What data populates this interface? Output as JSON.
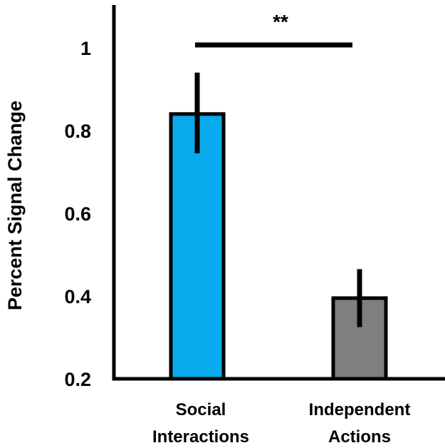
{
  "chart_data": {
    "type": "bar",
    "ylabel": "Percent Signal Change",
    "ylim": [
      0.2,
      1.1
    ],
    "yticks": [
      0.2,
      0.4,
      0.6,
      0.8,
      1
    ],
    "ytick_labels": [
      "0.2",
      "0.4",
      "0.6",
      "0.8",
      "1"
    ],
    "categories": [
      [
        "Social",
        "Interactions"
      ],
      [
        "Independent",
        "Actions"
      ]
    ],
    "values": [
      0.84,
      0.395
    ],
    "error_bars": [
      {
        "low": 0.745,
        "high": 0.94
      },
      {
        "low": 0.325,
        "high": 0.465
      }
    ],
    "bar_colors": [
      "#0aaaee",
      "#7f7f7f"
    ],
    "significance": {
      "label": "**",
      "between": [
        0,
        1
      ],
      "y": 1.0
    },
    "grid": false,
    "legend": "none"
  }
}
